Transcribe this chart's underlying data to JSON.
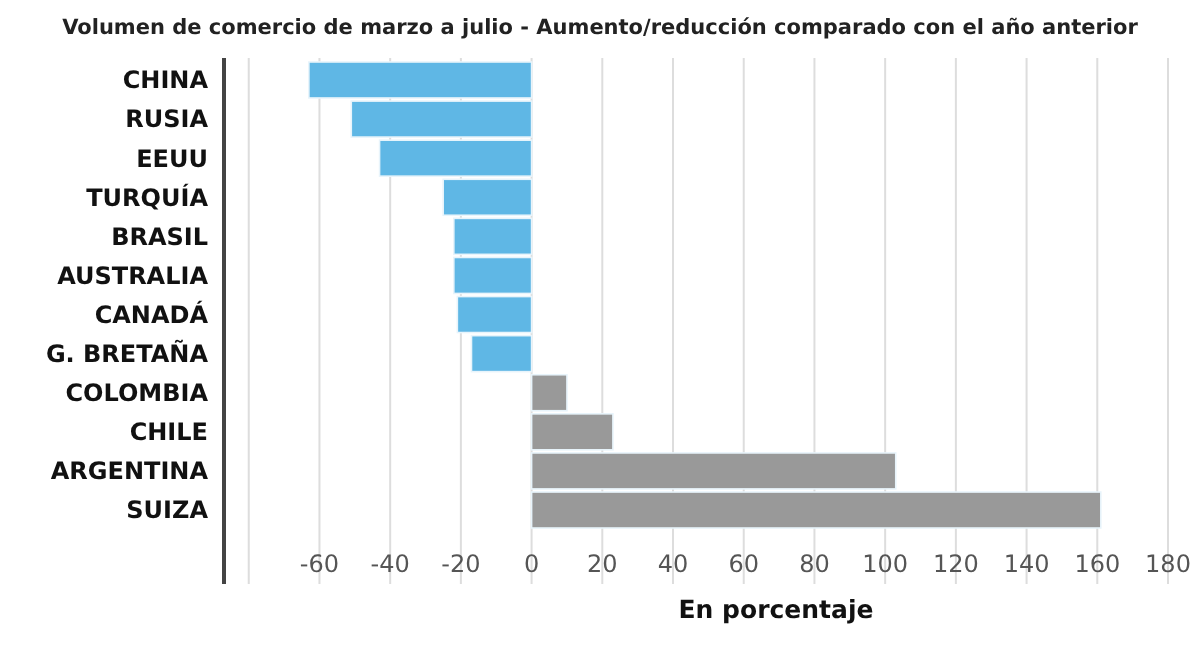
{
  "chart_data": {
    "type": "bar",
    "orientation": "horizontal",
    "title": "Volumen de comercio de marzo a julio - Aumento/reducción comparado con el año anterior",
    "xlabel": "En porcentaje",
    "categories": [
      "CHINA",
      "RUSIA",
      "EEUU",
      "TURQUÍA",
      "BRASIL",
      "AUSTRALIA",
      "CANADÁ",
      "G. BRETAÑA",
      "COLOMBIA",
      "CHILE",
      "ARGENTINA",
      "SUIZA"
    ],
    "values": [
      -63,
      -51,
      -43,
      -25,
      -22,
      -22,
      -21,
      -17,
      10,
      23,
      103,
      161
    ],
    "colors": [
      "#5fb7e5",
      "#5fb7e5",
      "#5fb7e5",
      "#5fb7e5",
      "#5fb7e5",
      "#5fb7e5",
      "#5fb7e5",
      "#5fb7e5",
      "#999999",
      "#999999",
      "#999999",
      "#999999"
    ],
    "xlim": [
      -87,
      180
    ],
    "xticks": [
      {
        "value": -80,
        "label": null
      },
      -60,
      -40,
      -20,
      0,
      20,
      40,
      60,
      80,
      100,
      120,
      140,
      160,
      180
    ],
    "grid": "x"
  }
}
